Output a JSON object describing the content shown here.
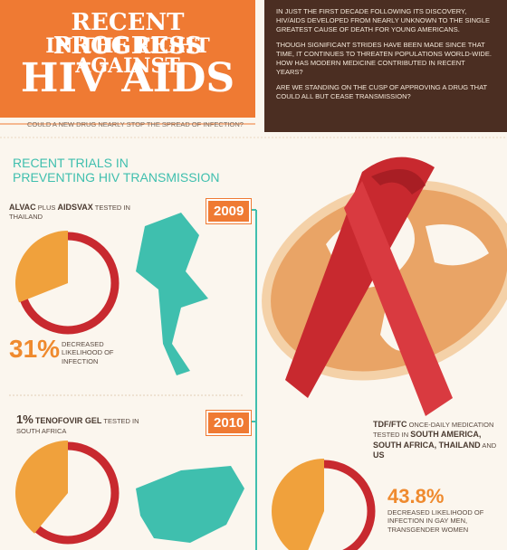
{
  "header": {
    "title_lines": [
      "RECENT PROGRESS",
      "IN THE FIGHT AGAINST",
      "HIV AIDS"
    ],
    "subtitle": "COULD A NEW DRUG NEARLY STOP THE SPREAD OF INFECTION?",
    "intro": [
      "IN JUST THE FIRST DECADE FOLLOWING ITS DISCOVERY, HIV/AIDS DEVELOPED FROM NEARLY UNKNOWN TO THE SINGLE GREATEST CAUSE OF DEATH FOR YOUNG AMERICANS.",
      "THOUGH SIGNIFICANT STRIDES HAVE BEEN MADE SINCE THAT TIME, IT CONTINUES TO THREATEN POPULATIONS WORLD-WIDE. HOW HAS MODERN MEDICINE CONTRIBUTED IN RECENT YEARS?",
      "ARE WE STANDING ON THE CUSP OF APPROVING A DRUG THAT COULD ALL BUT CEASE TRANSMISSION?"
    ]
  },
  "section_title": [
    "RECENT TRIALS IN",
    "PREVENTING HIV TRANSMISSION"
  ],
  "years": [
    "2009",
    "2010"
  ],
  "trials": [
    {
      "drug": "ALVAC",
      "plus": "PLUS",
      "drug2": "AIDSVAX",
      "tested": "TESTED IN THAILAND",
      "value": 31,
      "value_label": "31%",
      "result": "DECREASED LIKELIHOOD OF INFECTION"
    },
    {
      "lead_text": "1%",
      "drug": "TENOFOVIR GEL",
      "tested": "TESTED IN SOUTH AFRICA",
      "value": 39
    },
    {
      "drug": "TDF/FTC",
      "tested": "ONCE-DAILY MEDICATION TESTED IN",
      "places": "SOUTH AMERICA, SOUTH AFRICA, THAILAND",
      "and": "AND",
      "us": "US",
      "value": 43.8,
      "value_label": "43.8%",
      "result": "DECREASED LIKELIHOOD OF INFECTION IN GAY MEN, TRANSGENDER WOMEN"
    }
  ]
}
